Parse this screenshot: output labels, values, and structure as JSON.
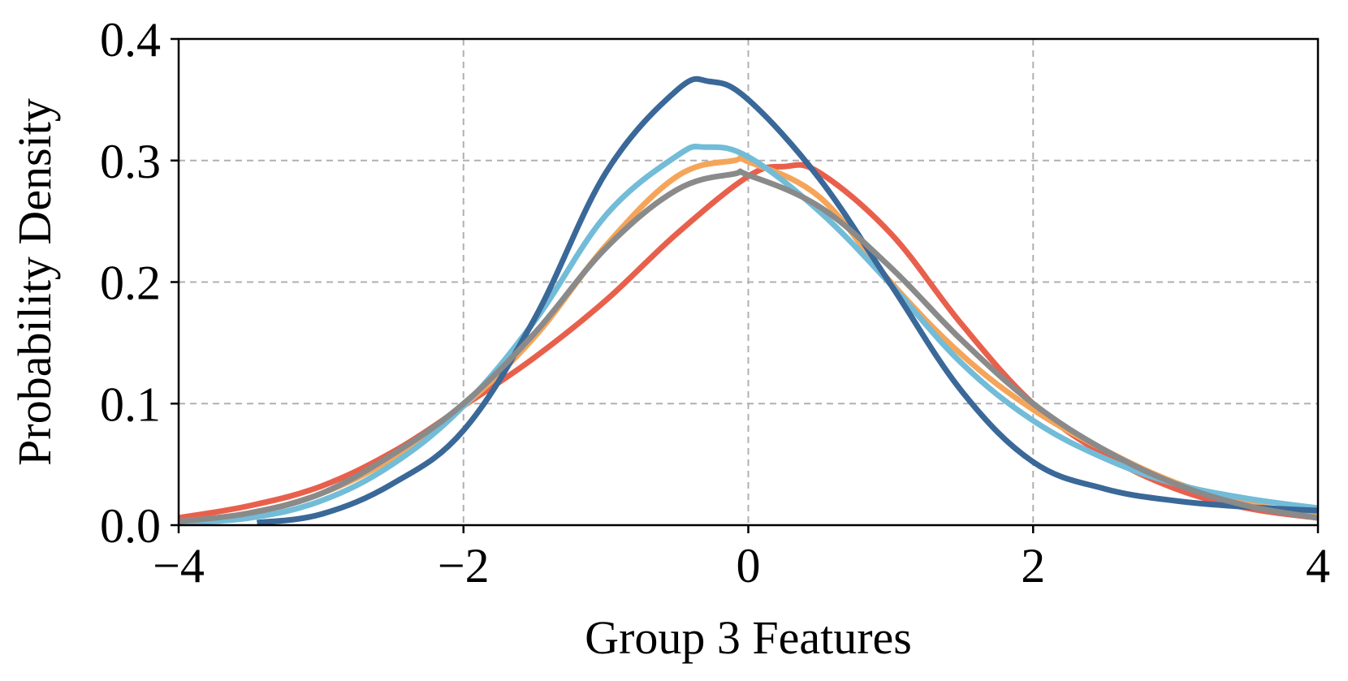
{
  "chart_data": {
    "type": "line",
    "title": "",
    "xlabel": "Group 3 Features",
    "ylabel": "Probability Density",
    "xlim": [
      -4,
      4
    ],
    "ylim": [
      0,
      0.4
    ],
    "xticks": [
      -4,
      -2,
      0,
      2,
      4
    ],
    "xtick_labels": [
      "−4",
      "−2",
      "0",
      "2",
      "4"
    ],
    "yticks": [
      0,
      0.1,
      0.2,
      0.3,
      0.4
    ],
    "ytick_labels": [
      "0.0",
      "0.1",
      "0.2",
      "0.3",
      "0.4"
    ],
    "grid": true,
    "legend": false,
    "series": [
      {
        "color": "#e8604c",
        "x": [
          -4,
          -3.5,
          -3,
          -2.5,
          -2,
          -1.5,
          -1,
          -0.5,
          0,
          0.25,
          0.5,
          1,
          1.5,
          2,
          2.5,
          3,
          3.5,
          4
        ],
        "y": [
          0.006,
          0.016,
          0.032,
          0.06,
          0.098,
          0.138,
          0.185,
          0.24,
          0.287,
          0.295,
          0.29,
          0.24,
          0.165,
          0.1,
          0.058,
          0.03,
          0.014,
          0.006
        ]
      },
      {
        "color": "#f5a55a",
        "x": [
          -4,
          -3.5,
          -3,
          -2.5,
          -2,
          -1.5,
          -1,
          -0.5,
          -0.1,
          0,
          0.5,
          1,
          1.5,
          2,
          2.5,
          3,
          3.5,
          4
        ],
        "y": [
          0.003,
          0.01,
          0.026,
          0.055,
          0.098,
          0.155,
          0.23,
          0.287,
          0.3,
          0.299,
          0.27,
          0.2,
          0.14,
          0.095,
          0.062,
          0.035,
          0.018,
          0.008
        ]
      },
      {
        "color": "#72bcd8",
        "x": [
          -4,
          -3.5,
          -3,
          -2.5,
          -2,
          -1.5,
          -1,
          -0.5,
          -0.3,
          0,
          0.5,
          1,
          1.5,
          2,
          2.5,
          3,
          3.5,
          4
        ],
        "y": [
          0.002,
          0.006,
          0.02,
          0.05,
          0.098,
          0.168,
          0.255,
          0.304,
          0.311,
          0.303,
          0.258,
          0.198,
          0.133,
          0.086,
          0.055,
          0.034,
          0.022,
          0.014
        ]
      },
      {
        "color": "#3a6898",
        "x": [
          -3.45,
          -3,
          -2.5,
          -2,
          -1.5,
          -1,
          -0.5,
          -0.27,
          0,
          0.5,
          1,
          1.5,
          2,
          2.5,
          3,
          3.5,
          4
        ],
        "y": [
          0.002,
          0.009,
          0.034,
          0.078,
          0.17,
          0.29,
          0.358,
          0.365,
          0.35,
          0.285,
          0.198,
          0.11,
          0.052,
          0.03,
          0.02,
          0.015,
          0.012
        ]
      },
      {
        "color": "#8a8a8a",
        "x": [
          -4,
          -3.5,
          -3,
          -2.5,
          -2,
          -1.5,
          -1,
          -0.5,
          -0.1,
          0,
          0.5,
          1,
          1.5,
          2,
          2.5,
          3,
          3.5,
          4
        ],
        "y": [
          0.003,
          0.01,
          0.026,
          0.058,
          0.1,
          0.158,
          0.228,
          0.276,
          0.289,
          0.288,
          0.262,
          0.212,
          0.152,
          0.1,
          0.062,
          0.034,
          0.016,
          0.006
        ]
      }
    ]
  }
}
